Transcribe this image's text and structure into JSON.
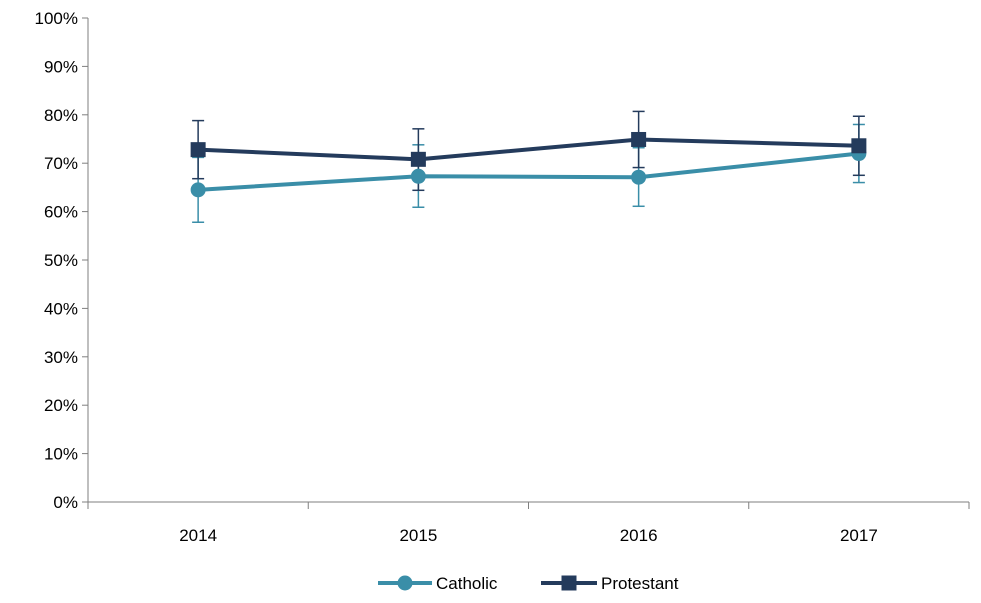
{
  "chart_data": {
    "type": "line",
    "categories": [
      "2014",
      "2015",
      "2016",
      "2017"
    ],
    "y_ticks": [
      "0%",
      "10%",
      "20%",
      "30%",
      "40%",
      "50%",
      "60%",
      "70%",
      "80%",
      "90%",
      "100%"
    ],
    "ylim": [
      0,
      100
    ],
    "grid": false,
    "legend_position": "bottom",
    "series": [
      {
        "name": "Catholic",
        "color": "#3a8ea8",
        "marker": "circle",
        "values": [
          64.5,
          67.3,
          67.1,
          72.0
        ],
        "error_low": [
          57.8,
          60.9,
          61.1,
          66.0
        ],
        "error_high": [
          71.2,
          73.8,
          73.2,
          78.0
        ]
      },
      {
        "name": "Protestant",
        "color": "#243b5c",
        "marker": "square",
        "values": [
          72.8,
          70.8,
          74.9,
          73.6
        ],
        "error_low": [
          66.8,
          64.4,
          69.1,
          67.5
        ],
        "error_high": [
          78.8,
          77.1,
          80.7,
          79.7
        ]
      }
    ]
  }
}
